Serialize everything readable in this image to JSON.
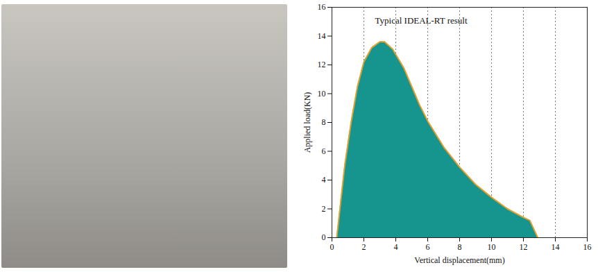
{
  "chart_data": {
    "type": "area",
    "title": "Typical IDEAL-RT result",
    "x_label": "Vertical displacement(mm)",
    "y_label": "Applied load(KN)",
    "x": [
      0.3,
      0.5,
      0.8,
      1.2,
      1.6,
      2.0,
      2.5,
      3.0,
      3.3,
      3.8,
      4.5,
      5.0,
      5.5,
      6.0,
      7.0,
      8.0,
      9.0,
      10.0,
      11.0,
      12.0,
      12.4,
      12.9
    ],
    "values": [
      0,
      2,
      5,
      8,
      10.5,
      12.2,
      13.2,
      13.6,
      13.6,
      13.1,
      11.8,
      10.5,
      9.2,
      8.1,
      6.3,
      4.9,
      3.7,
      2.8,
      2.0,
      1.4,
      1.2,
      0
    ],
    "color": "#16948e",
    "xlim": [
      0,
      16
    ],
    "xticks": [
      0,
      2,
      4,
      6,
      8,
      10,
      12,
      14,
      16
    ],
    "ylim": [
      0,
      16
    ],
    "yticks": [
      0,
      2,
      4,
      6,
      8,
      10,
      12,
      14,
      16
    ],
    "grid": "x"
  }
}
